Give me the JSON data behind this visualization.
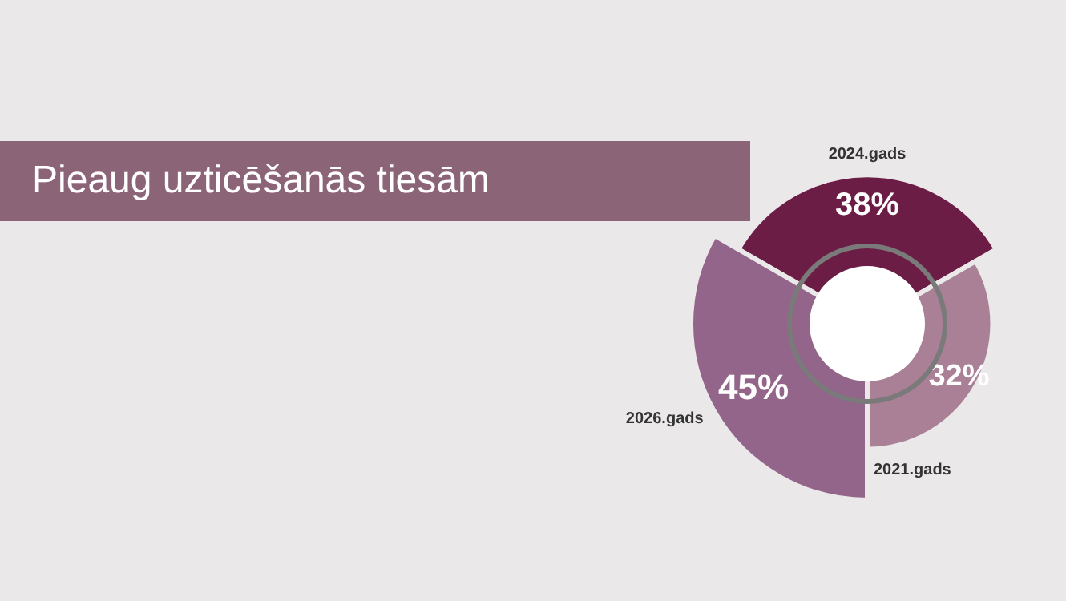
{
  "chart_data": {
    "type": "other",
    "title": "Pieaug uzticēšanās tiesām",
    "categories": [
      "2024.gads",
      "2021.gads",
      "2026.gads"
    ],
    "values": [
      38,
      32,
      45
    ],
    "colors": [
      "#6b1d45",
      "#a98096",
      "#93658a"
    ],
    "value_labels": [
      "38%",
      "32%",
      "45%"
    ]
  }
}
